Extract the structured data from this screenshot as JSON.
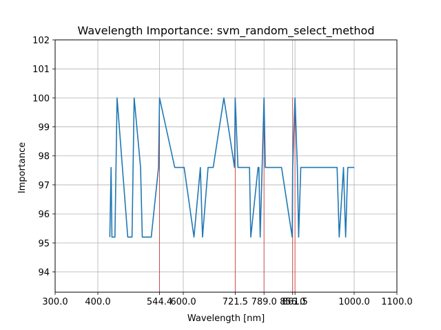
{
  "chart_data": {
    "type": "line",
    "title": "Wavelength Importance: svm_random_select_method",
    "xlabel": "Wavelength [nm]",
    "ylabel": "Importance",
    "xlim": [
      300,
      1100
    ],
    "ylim": [
      93.3,
      102.0
    ],
    "x_ticks": [
      300.0,
      400.0,
      544.4,
      600.0,
      721.5,
      789.0,
      856.0,
      861.5,
      1000.0,
      1100.0
    ],
    "x_tick_labels": [
      "300.0",
      "400.0",
      "544.4",
      "600.0",
      "721.5",
      "789.0",
      "856.0",
      "861.5",
      "1000.0",
      "1100.0"
    ],
    "y_ticks": [
      94,
      95,
      96,
      97,
      98,
      99,
      100,
      101,
      102
    ],
    "y_tick_labels": [
      "94",
      "95",
      "96",
      "97",
      "98",
      "99",
      "100",
      "101",
      "102"
    ],
    "grid": true,
    "series": [
      {
        "color": "#1f77b4",
        "x": [
          428,
          431,
          433,
          440,
          445,
          470,
          480,
          485,
          500,
          504,
          525,
          542,
          544.4,
          580,
          602,
          625,
          640,
          645,
          658,
          670,
          695,
          720,
          721.5,
          728,
          755,
          758,
          775,
          777,
          780,
          789,
          792,
          830,
          855,
          856,
          861.5,
          867,
          870,
          875,
          895,
          960,
          965,
          975,
          980,
          985,
          1000
        ],
        "y": [
          95.2,
          97.6,
          95.2,
          95.2,
          100.0,
          95.2,
          95.2,
          100.0,
          97.6,
          95.2,
          95.2,
          97.6,
          100.0,
          97.6,
          97.6,
          95.2,
          97.6,
          95.2,
          97.6,
          97.6,
          100.0,
          97.6,
          100.0,
          97.6,
          97.6,
          95.2,
          97.6,
          97.6,
          95.2,
          100.0,
          97.6,
          97.6,
          95.2,
          97.6,
          100.0,
          97.6,
          95.2,
          97.6,
          97.6,
          97.6,
          95.2,
          97.6,
          95.2,
          97.6,
          97.6
        ]
      }
    ],
    "vlines": {
      "color": "#d62728",
      "x": [
        544.4,
        721.5,
        789.0,
        856.0,
        861.5
      ]
    }
  }
}
